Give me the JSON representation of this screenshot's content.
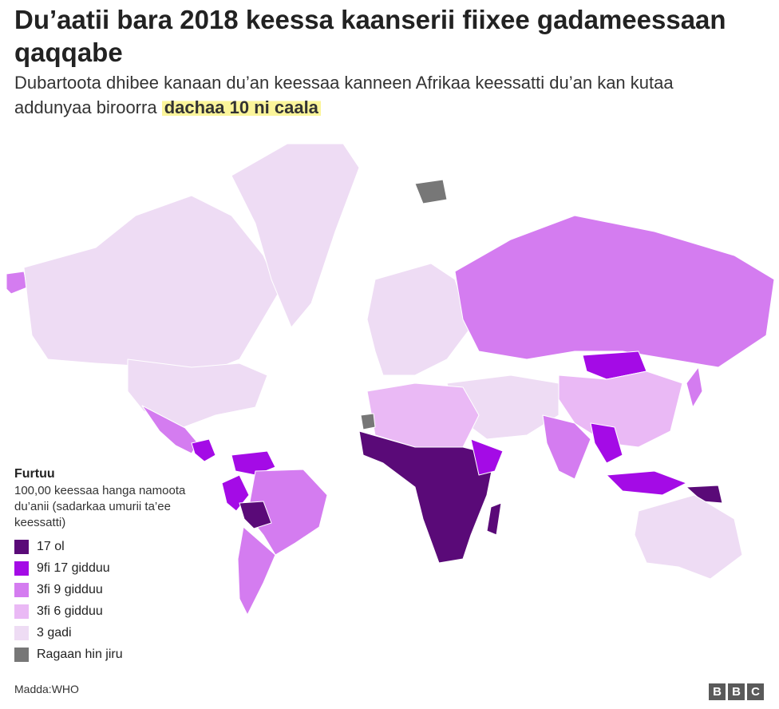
{
  "title": "Du’aatii bara 2018 keessa kaanserii fiixee gadameessaan qaqqabe",
  "subtitle_part1": "Dubartoota dhibee kanaan du’an keessaa kanneen Afrikaa keessatti du’an kan kutaa addunyaa biroorra ",
  "subtitle_highlight": "dachaa 10 ni caala",
  "legend": {
    "title": "Furtuu",
    "description": "100,00 keessaa hanga namoota du’anii (sadarkaa umurii ta’ee keessatti)",
    "items": [
      {
        "label": "17 ol",
        "color": "#5a0a78"
      },
      {
        "label": "9fi 17 gidduu",
        "color": "#a40be6"
      },
      {
        "label": "3fi 9 gidduu",
        "color": "#d47cf0"
      },
      {
        "label": "3fi 6 gidduu",
        "color": "#eab9f5"
      },
      {
        "label": "3 gadi",
        "color": "#eedcf4"
      },
      {
        "label": "Ragaan hin jiru",
        "color": "#777777"
      }
    ]
  },
  "source": "Madda:WHO",
  "logo": [
    "B",
    "B",
    "C"
  ]
}
